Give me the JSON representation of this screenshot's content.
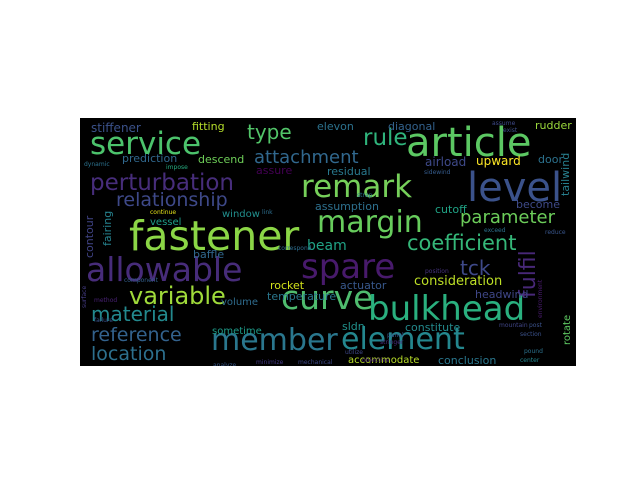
{
  "word_cloud": {
    "background": "#000000",
    "words": [
      {
        "text": "service",
        "color": "#4cc36c"
      },
      {
        "text": "article",
        "color": "#5cc863"
      },
      {
        "text": "remark",
        "color": "#76d05a"
      },
      {
        "text": "level",
        "color": "#3b528b"
      },
      {
        "text": "fastener",
        "color": "#8bd646"
      },
      {
        "text": "margin",
        "color": "#67cc5c"
      },
      {
        "text": "allowable",
        "color": "#472c7a"
      },
      {
        "text": "spare",
        "color": "#481a6c"
      },
      {
        "text": "curve",
        "color": "#4fbc6e"
      },
      {
        "text": "bulkhead",
        "color": "#2ab07f"
      },
      {
        "text": "element",
        "color": "#24878e"
      },
      {
        "text": "member",
        "color": "#2a778e"
      },
      {
        "text": "perturbation",
        "color": "#472d7b"
      },
      {
        "text": "variable",
        "color": "#9fda3a"
      },
      {
        "text": "coefficient",
        "color": "#35b779"
      },
      {
        "text": "attachment",
        "color": "#31688e"
      },
      {
        "text": "relationship",
        "color": "#3e4989"
      },
      {
        "text": "rule",
        "color": "#2fb47c"
      },
      {
        "text": "type",
        "color": "#52c569"
      },
      {
        "text": "parameter",
        "color": "#6ccd5a"
      },
      {
        "text": "material",
        "color": "#23898e"
      },
      {
        "text": "reference",
        "color": "#33628d"
      },
      {
        "text": "location",
        "color": "#2d708e"
      },
      {
        "text": "tck",
        "color": "#3e4989"
      },
      {
        "text": "fulfil",
        "color": "#482878"
      },
      {
        "text": "beam",
        "color": "#20a386"
      },
      {
        "text": "consideration",
        "color": "#bddf26"
      },
      {
        "text": "stiffener",
        "color": "#3b528b"
      },
      {
        "text": "fitting",
        "color": "#b5de2b"
      },
      {
        "text": "elevon",
        "color": "#2c728e"
      },
      {
        "text": "diagonal",
        "color": "#33628d"
      },
      {
        "text": "rudder",
        "color": "#9bd93c"
      },
      {
        "text": "prediction",
        "color": "#31688e"
      },
      {
        "text": "descend",
        "color": "#6ece58"
      },
      {
        "text": "assure",
        "color": "#440154"
      },
      {
        "text": "residual",
        "color": "#29798e"
      },
      {
        "text": "airload",
        "color": "#3e4989"
      },
      {
        "text": "upward",
        "color": "#fde725"
      },
      {
        "text": "door",
        "color": "#2c728e"
      },
      {
        "text": "tailwind",
        "color": "#277f8e"
      },
      {
        "text": "fairing",
        "color": "#26828e"
      },
      {
        "text": "assumption",
        "color": "#2d708e"
      },
      {
        "text": "cutoff",
        "color": "#20a486"
      },
      {
        "text": "become",
        "color": "#3e4a89"
      },
      {
        "text": "window",
        "color": "#218f8d"
      },
      {
        "text": "contour",
        "color": "#414487"
      },
      {
        "text": "baffle",
        "color": "#31688e"
      },
      {
        "text": "vessel",
        "color": "#1f9e89"
      },
      {
        "text": "volume",
        "color": "#2f6c8e"
      },
      {
        "text": "rocket",
        "color": "#d2e21b"
      },
      {
        "text": "actuator",
        "color": "#38588c"
      },
      {
        "text": "temperature",
        "color": "#2a778e"
      },
      {
        "text": "headwind",
        "color": "#3f4788"
      },
      {
        "text": "sldn",
        "color": "#21918c"
      },
      {
        "text": "constitute",
        "color": "#238a8d"
      },
      {
        "text": "sometime",
        "color": "#1e9c89"
      },
      {
        "text": "accommodate",
        "color": "#b8de29"
      },
      {
        "text": "conclusion",
        "color": "#2a778e"
      },
      {
        "text": "rotate",
        "color": "#5ec962"
      },
      {
        "text": "continue",
        "color": "#e5e419"
      },
      {
        "text": "impose",
        "color": "#26ad81"
      },
      {
        "text": "dynamic",
        "color": "#2c728e"
      },
      {
        "text": "component",
        "color": "#34608d"
      },
      {
        "text": "position",
        "color": "#46337e"
      },
      {
        "text": "section",
        "color": "#3b528b"
      },
      {
        "text": "post",
        "color": "#3b528b"
      },
      {
        "text": "center",
        "color": "#24868e"
      },
      {
        "text": "pound",
        "color": "#2c728e"
      },
      {
        "text": "surface",
        "color": "#443b84"
      },
      {
        "text": "method",
        "color": "#482173"
      },
      {
        "text": "failure",
        "color": "#3a548c"
      },
      {
        "text": "correspond",
        "color": "#2e6e8e"
      },
      {
        "text": "analyze",
        "color": "#38598c"
      },
      {
        "text": "link",
        "color": "#2e6f8e"
      },
      {
        "text": "sidewind",
        "color": "#365c8d"
      },
      {
        "text": "mountain",
        "color": "#404688"
      },
      {
        "text": "minimize",
        "color": "#443983"
      },
      {
        "text": "utilize",
        "color": "#3f4889"
      },
      {
        "text": "exceed",
        "color": "#2d708e"
      },
      {
        "text": "reduce",
        "color": "#39568c"
      },
      {
        "text": "assume",
        "color": "#3e4989"
      },
      {
        "text": "exist",
        "color": "#3d4e8a"
      },
      {
        "text": "strap",
        "color": "#2a788e"
      },
      {
        "text": "panel",
        "color": "#38588c"
      },
      {
        "text": "objective",
        "color": "#482374"
      },
      {
        "text": "stringer",
        "color": "#472f7d"
      },
      {
        "text": "environment",
        "color": "#481b6d"
      },
      {
        "text": "mechanical",
        "color": "#3e4989"
      }
    ]
  }
}
